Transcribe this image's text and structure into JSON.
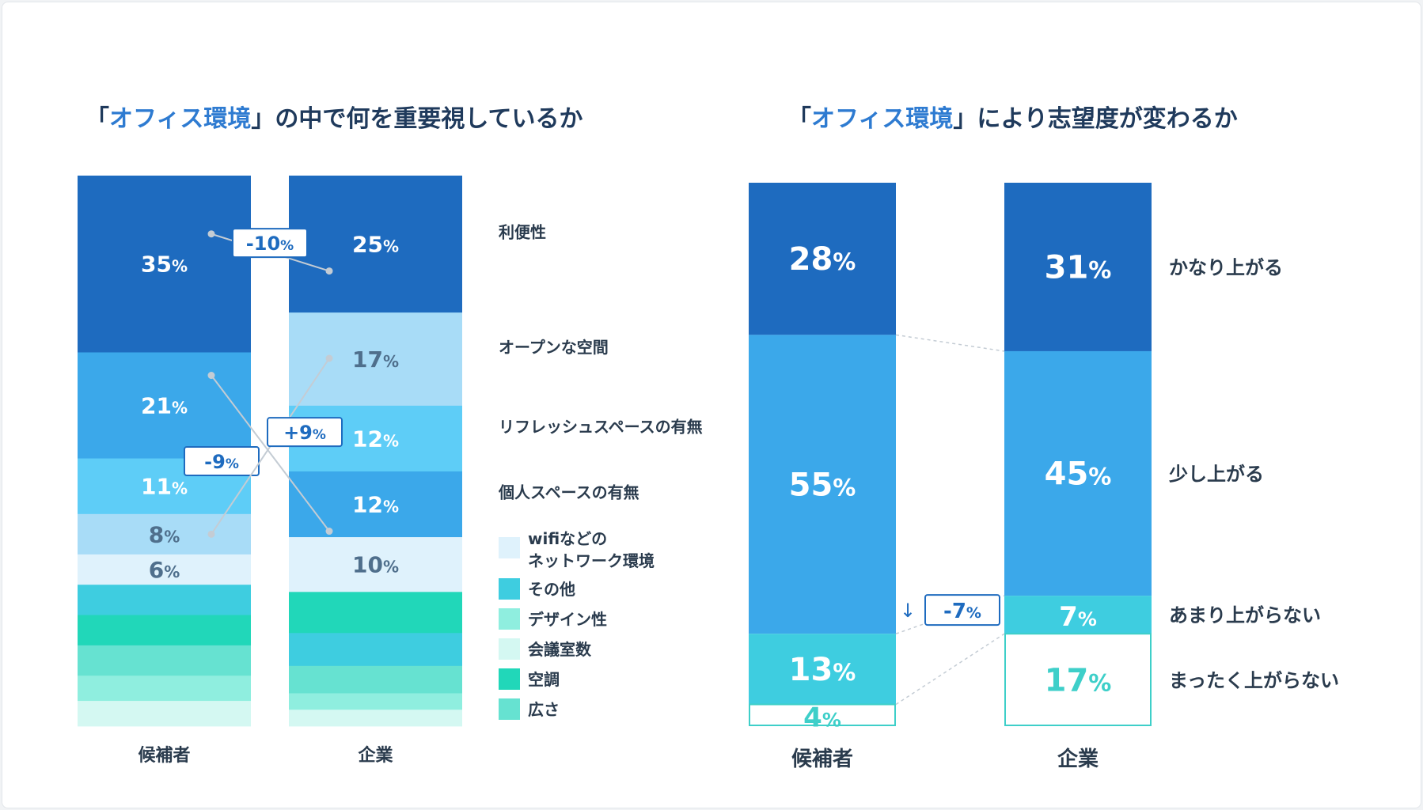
{
  "colors": {
    "title_dark": "#1f3a5c",
    "title_accent": "#2e7bd1",
    "label_dark": "#2a3b4d"
  },
  "left_title": {
    "open": "「",
    "accent": "オフィス環境",
    "rest": "」の中で何を重要視しているか"
  },
  "right_title": {
    "open": "「",
    "accent": "オフィス環境",
    "rest": "」により志望度が変わるか"
  },
  "chart_data": [
    {
      "type": "stacked-bar",
      "title": "「オフィス環境」の中で何を重要視しているか",
      "categories": [
        "候補者",
        "企業"
      ],
      "unit": "%",
      "series": [
        {
          "name": "利便性",
          "color": "#1e6bbf",
          "values": [
            35,
            25
          ],
          "text_color": "#ffffff",
          "labels": [
            "35",
            "25"
          ]
        },
        {
          "name": "オープンな空間",
          "color": "#a8dcf7",
          "values": [
            8,
            17
          ],
          "text_color": "#4f6f8c",
          "labels": [
            "8",
            "17"
          ]
        },
        {
          "name": "リフレッシュスペースの有無",
          "color": "#5ecdf7",
          "values": [
            11,
            12
          ],
          "text_color": "#ffffff",
          "labels": [
            "11",
            "12"
          ]
        },
        {
          "name": "個人スペースの有無",
          "color": "#3ba8ea",
          "values": [
            21,
            12
          ],
          "text_color": "#ffffff",
          "labels": [
            "21",
            "12"
          ]
        },
        {
          "name": "wifiなどの\nネットワーク環境",
          "color": "#dff2fc",
          "values": [
            6,
            10
          ],
          "text_color": "#4f6f8c",
          "labels": [
            "6",
            "10"
          ]
        },
        {
          "name": "その他",
          "color": "#3ecde0",
          "values": [
            6,
            6
          ],
          "labels": [
            "",
            ""
          ]
        },
        {
          "name": "デザイン性",
          "color": "#8feedf",
          "values": [
            5,
            3
          ],
          "labels": [
            "",
            ""
          ]
        },
        {
          "name": "会議室数",
          "color": "#d4f8f2",
          "values": [
            5,
            3
          ],
          "labels": [
            "",
            ""
          ]
        },
        {
          "name": "空調",
          "color": "#21d7b9",
          "values": [
            6,
            7.5
          ],
          "labels": [
            "",
            ""
          ]
        },
        {
          "name": "広さ",
          "color": "#66e2d1",
          "values": [
            6,
            5
          ],
          "labels": [
            "",
            ""
          ]
        }
      ],
      "bar_orders": [
        [
          "利便性",
          "個人スペースの有無",
          "リフレッシュスペースの有無",
          "オープンな空間",
          "wifiなどの\nネットワーク環境",
          "その他",
          "空調",
          "広さ",
          "デザイン性",
          "会議室数"
        ],
        [
          "利便性",
          "オープンな空間",
          "リフレッシュスペースの有無",
          "個人スペースの有無",
          "wifiなどの\nネットワーク環境",
          "空調",
          "その他",
          "広さ",
          "デザイン性",
          "会議室数"
        ]
      ],
      "label_side": [
        "利便性",
        "オープンな空間",
        "リフレッシュスペースの有無",
        "個人スペースの有無"
      ],
      "legend_boxes": [
        "wifiなどの\nネットワーク環境",
        "その他",
        "デザイン性",
        "会議室数",
        "空調",
        "広さ"
      ],
      "annotations": [
        {
          "text": "-10",
          "from": [
            "候補者",
            "利便性"
          ],
          "to": [
            "企業",
            "利便性"
          ]
        },
        {
          "text": "-9",
          "from": [
            "候補者",
            "個人スペースの有無"
          ],
          "to": [
            "企業",
            "個人スペースの有無"
          ]
        },
        {
          "text": "+9",
          "from": [
            "候補者",
            "オープンな空間"
          ],
          "to": [
            "企業",
            "オープンな空間"
          ]
        }
      ]
    },
    {
      "type": "stacked-bar",
      "title": "「オフィス環境」により志望度が変わるか",
      "categories": [
        "候補者",
        "企業"
      ],
      "unit": "%",
      "series": [
        {
          "name": "かなり上がる",
          "color": "#1e6bbf",
          "text_color": "#ffffff",
          "values": [
            28,
            31
          ]
        },
        {
          "name": "少し上がる",
          "color": "#3ba8ea",
          "text_color": "#ffffff",
          "values": [
            55,
            45
          ]
        },
        {
          "name": "あまり上がらない",
          "color": "#3ecde0",
          "text_color": "#ffffff",
          "values": [
            13,
            7
          ]
        },
        {
          "name": "まったく上がらない",
          "color": "#ffffff",
          "text_color": "#3ecfc9",
          "outline": "#3ecfc9",
          "values": [
            4,
            17
          ]
        }
      ],
      "annotation": {
        "text": "-7",
        "arrow": "↓"
      }
    }
  ]
}
